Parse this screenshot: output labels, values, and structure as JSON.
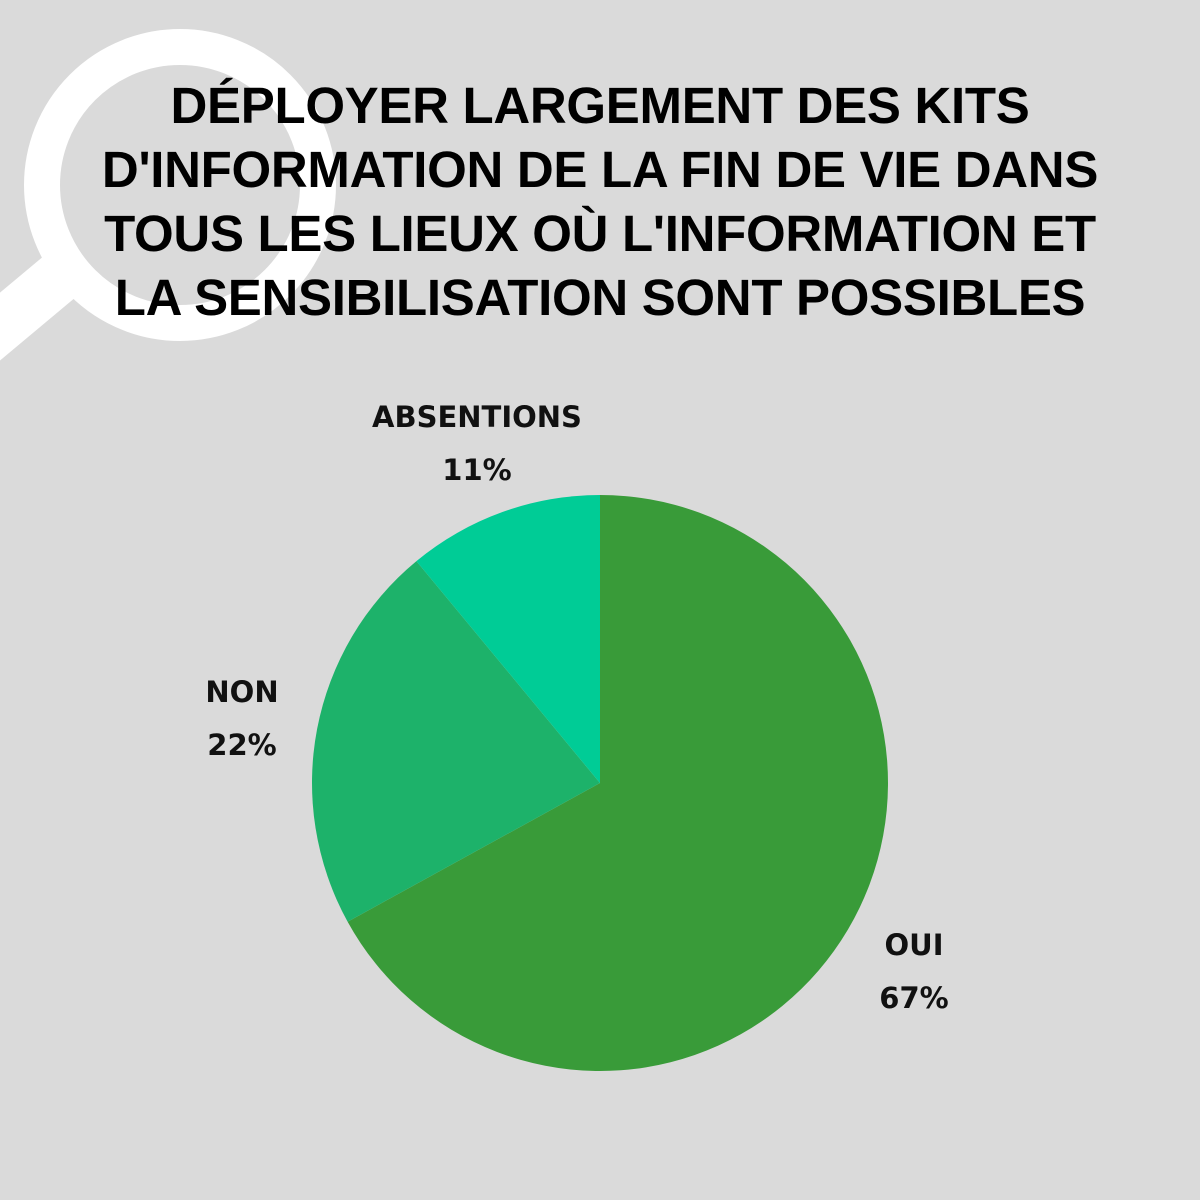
{
  "title_lines": [
    "DÉPLOYER LARGEMENT DES KITS",
    "D'INFORMATION DE LA FIN DE VIE DANS",
    "TOUS LES LIEUX OÙ L'INFORMATION ET",
    "LA SENSIBILISATION SONT POSSIBLES"
  ],
  "decoration": {
    "icon": "magnifier-icon",
    "color": "#ffffff"
  },
  "colors": {
    "background": "#dadada"
  },
  "chart_data": {
    "type": "pie",
    "title": "DÉPLOYER LARGEMENT DES KITS D'INFORMATION DE LA FIN DE VIE DANS TOUS LES LIEUX OÙ L'INFORMATION ET LA SENSIBILISATION SONT POSSIBLES",
    "start": "top",
    "direction": "clockwise",
    "slices": [
      {
        "label": "OUI",
        "value": 67,
        "display": "67%",
        "color": "#399b39"
      },
      {
        "label": "NON",
        "value": 22,
        "display": "22%",
        "color": "#1db26a"
      },
      {
        "label": "ABSENTIONS",
        "value": 11,
        "display": "11%",
        "color": "#00cc96"
      }
    ]
  }
}
